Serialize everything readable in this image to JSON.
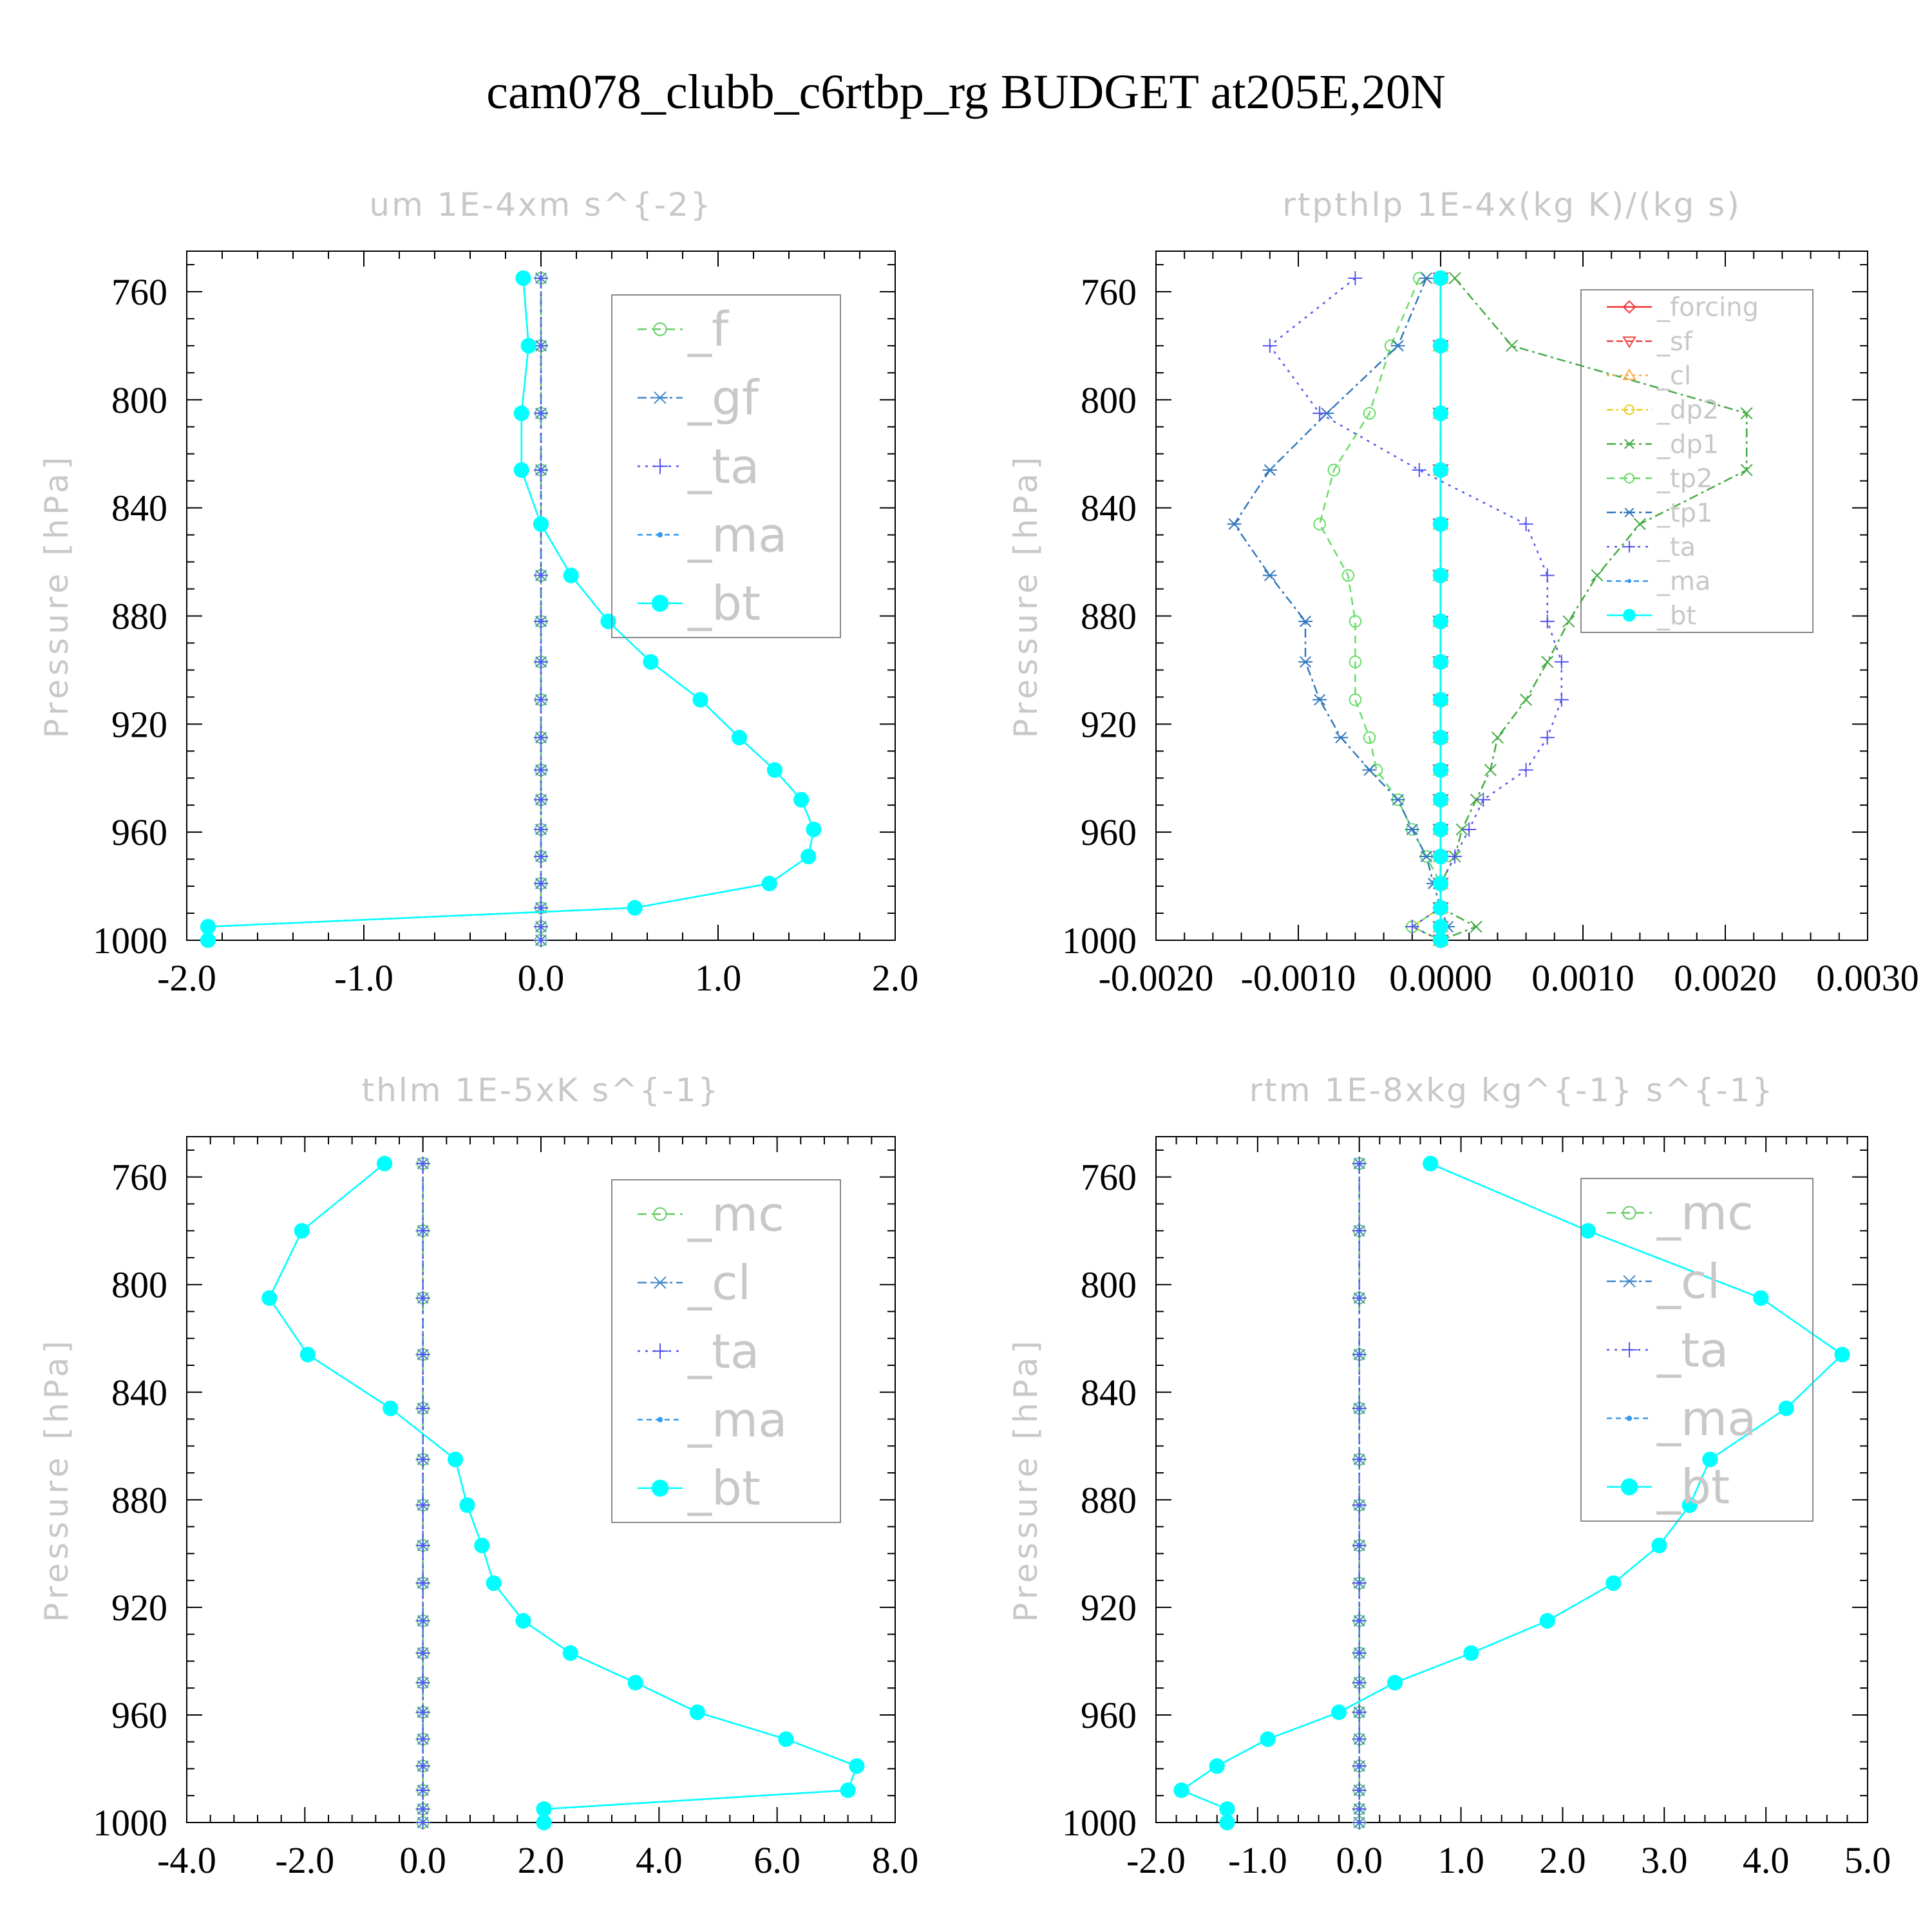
{
  "figure_title": "cam078_clubb_c6rtbp_rg  BUDGET at205E,20N",
  "chart_data": [
    {
      "id": "um",
      "type": "line",
      "title": "um   1E-4xm s^{-2}",
      "ylabel": "Pressure [hPa]",
      "xlim": [
        -2.0,
        2.0
      ],
      "ylim": [
        1000,
        745
      ],
      "xticks": [
        "-2.0",
        "-1.0",
        "0.0",
        "1.0",
        "2.0"
      ],
      "xtick_values": [
        -2.0,
        -1.0,
        0.0,
        1.0,
        2.0
      ],
      "yticks": [
        "760",
        "800",
        "840",
        "880",
        "920",
        "960",
        "1000"
      ],
      "ytick_values": [
        760,
        800,
        840,
        880,
        920,
        960,
        1000
      ],
      "legend_font": 74,
      "levels": [
        755,
        780,
        805,
        826,
        846,
        865,
        882,
        897,
        911,
        925,
        937,
        948,
        959,
        969,
        979,
        988,
        995,
        1000
      ],
      "series": [
        {
          "name": "_f",
          "color": "#66cc66",
          "dash": "14,8",
          "marker": "circle",
          "values": [
            0,
            0,
            0,
            0,
            0,
            0,
            0,
            0,
            0,
            0,
            0,
            0,
            0,
            0,
            0,
            0,
            0,
            0
          ]
        },
        {
          "name": "_gf",
          "color": "#4488cc",
          "dash": "14,6,4,6",
          "marker": "star",
          "values": [
            0,
            0,
            0,
            0,
            0,
            0,
            0,
            0,
            0,
            0,
            0,
            0,
            0,
            0,
            0,
            0,
            0,
            0
          ]
        },
        {
          "name": "_ta",
          "color": "#5555ee",
          "dash": "4,8",
          "marker": "plus",
          "values": [
            0,
            0,
            0,
            0,
            0,
            0,
            0,
            0,
            0,
            0,
            0,
            0,
            0,
            0,
            0,
            0,
            0,
            0
          ]
        },
        {
          "name": "_ma",
          "color": "#3399ee",
          "dash": "8,6",
          "marker": "dot",
          "values": [
            -0.1,
            -0.07,
            -0.11,
            -0.11,
            0.0,
            0.17,
            0.38,
            0.62,
            0.9,
            1.12,
            1.32,
            1.47,
            1.54,
            1.51,
            1.29,
            0.53,
            -1.88,
            -1.88
          ]
        },
        {
          "name": "_bt",
          "color": "#00ffff",
          "dash": "",
          "marker": "bigdot",
          "values": [
            -0.1,
            -0.07,
            -0.11,
            -0.11,
            0.0,
            0.17,
            0.38,
            0.62,
            0.9,
            1.12,
            1.32,
            1.47,
            1.54,
            1.51,
            1.29,
            0.53,
            -1.88,
            -1.88
          ]
        }
      ]
    },
    {
      "id": "rtpthlp",
      "type": "line",
      "title": "rtpthlp   1E-4x(kg K)/(kg s)",
      "ylabel": "Pressure [hPa]",
      "xlim": [
        -0.002,
        0.003
      ],
      "ylim": [
        1000,
        745
      ],
      "xticks": [
        "-0.0020",
        "-0.0010",
        "0.0000",
        "0.0010",
        "0.0020",
        "0.0030"
      ],
      "xtick_values": [
        -0.002,
        -0.001,
        0.0,
        0.001,
        0.002,
        0.003
      ],
      "yticks": [
        "760",
        "800",
        "840",
        "880",
        "920",
        "960",
        "1000"
      ],
      "ytick_values": [
        760,
        800,
        840,
        880,
        920,
        960,
        1000
      ],
      "legend_font": 40,
      "levels": [
        755,
        780,
        805,
        826,
        846,
        865,
        882,
        897,
        911,
        925,
        937,
        948,
        959,
        969,
        979,
        988,
        995,
        1000
      ],
      "series": [
        {
          "name": "_forcing",
          "color": "#ee3333",
          "dash": "",
          "marker": "diamond",
          "values": [
            0,
            0,
            0,
            0,
            0,
            0,
            0,
            0,
            0,
            0,
            0,
            0,
            0,
            0,
            0,
            0,
            0,
            0
          ]
        },
        {
          "name": "_sf",
          "color": "#ee4444",
          "dash": "10,5",
          "marker": "tridown",
          "values": [
            0,
            0,
            0,
            0,
            0,
            0,
            0,
            0,
            0,
            0,
            0,
            0,
            0,
            0,
            0,
            0,
            0,
            0
          ]
        },
        {
          "name": "_cl",
          "color": "#ffaa44",
          "dash": "4,6",
          "marker": "triup",
          "values": [
            0,
            0,
            0,
            0,
            0,
            0,
            0,
            0,
            0,
            0,
            0,
            0,
            0,
            0,
            0,
            0,
            0,
            0
          ]
        },
        {
          "name": "_dp2",
          "color": "#eecc22",
          "dash": "10,5,3,5",
          "marker": "circle",
          "values": [
            0,
            0,
            0,
            0,
            0,
            0,
            0,
            0,
            0,
            0,
            0,
            0,
            0,
            0,
            0,
            0,
            -0.0002,
            0
          ]
        },
        {
          "name": "_dp1",
          "color": "#44aa44",
          "dash": "14,6,4,6",
          "marker": "cross",
          "values": [
            0.0001,
            0.0005,
            0.00215,
            0.00215,
            0.0014,
            0.0011,
            0.0009,
            0.00075,
            0.0006,
            0.0004,
            0.00035,
            0.00025,
            0.00015,
            0.0001,
            0.0,
            0.0,
            0.00025,
            0
          ]
        },
        {
          "name": "_tp2",
          "color": "#66dd66",
          "dash": "12,8",
          "marker": "circle",
          "values": [
            -0.00015,
            -0.00035,
            -0.0005,
            -0.00075,
            -0.00085,
            -0.00065,
            -0.0006,
            -0.0006,
            -0.0006,
            -0.0005,
            -0.00045,
            -0.0003,
            -0.0002,
            -0.0001,
            0.0,
            0.0,
            -0.0002,
            0
          ]
        },
        {
          "name": "_tp1",
          "color": "#3377bb",
          "dash": "14,6,4,6",
          "marker": "star",
          "values": [
            -0.0001,
            -0.0003,
            -0.0008,
            -0.0012,
            -0.00145,
            -0.0012,
            -0.00095,
            -0.00095,
            -0.00085,
            -0.0007,
            -0.0005,
            -0.0003,
            -0.0002,
            -0.0001,
            -5e-05,
            0.0,
            5e-05,
            0
          ]
        },
        {
          "name": "_ta",
          "color": "#5555ee",
          "dash": "4,8",
          "marker": "plus",
          "values": [
            -0.0006,
            -0.0012,
            -0.00085,
            -0.00015,
            0.0006,
            0.00075,
            0.00075,
            0.00085,
            0.00085,
            0.00075,
            0.0006,
            0.0003,
            0.0002,
            0.0001,
            0.0,
            0.0,
            -0.0002,
            0
          ]
        },
        {
          "name": "_ma",
          "color": "#3399ee",
          "dash": "8,6",
          "marker": "dot",
          "values": [
            0,
            0,
            0,
            0,
            0,
            0,
            0,
            0,
            0,
            0,
            0,
            0,
            0,
            0,
            0,
            0,
            0,
            0
          ]
        },
        {
          "name": "_bt",
          "color": "#00ffff",
          "dash": "",
          "marker": "bigdot",
          "values": [
            0,
            0,
            0,
            0,
            0,
            0,
            0,
            0,
            0,
            0,
            0,
            0,
            0,
            0,
            0,
            0,
            0,
            0
          ]
        }
      ]
    },
    {
      "id": "thlm",
      "type": "line",
      "title": "thlm   1E-5xK s^{-1}",
      "ylabel": "Pressure [hPa]",
      "xlim": [
        -4.0,
        8.0
      ],
      "ylim": [
        1000,
        745
      ],
      "xticks": [
        "-4.0",
        "-2.0",
        "0.0",
        "2.0",
        "4.0",
        "6.0",
        "8.0"
      ],
      "xtick_values": [
        -4.0,
        -2.0,
        0.0,
        2.0,
        4.0,
        6.0,
        8.0
      ],
      "yticks": [
        "760",
        "800",
        "840",
        "880",
        "920",
        "960",
        "1000"
      ],
      "ytick_values": [
        760,
        800,
        840,
        880,
        920,
        960,
        1000
      ],
      "legend_font": 74,
      "levels": [
        755,
        780,
        805,
        826,
        846,
        865,
        882,
        897,
        911,
        925,
        937,
        948,
        959,
        969,
        979,
        988,
        995,
        1000
      ],
      "series": [
        {
          "name": "_mc",
          "color": "#66cc66",
          "dash": "14,8",
          "marker": "circle",
          "values": [
            0,
            0,
            0,
            0,
            0,
            0,
            0,
            0,
            0,
            0,
            0,
            0,
            0,
            0,
            0,
            0,
            0,
            0
          ]
        },
        {
          "name": "_cl",
          "color": "#4488cc",
          "dash": "14,6,4,6",
          "marker": "star",
          "values": [
            0,
            0,
            0,
            0,
            0,
            0,
            0,
            0,
            0,
            0,
            0,
            0,
            0,
            0,
            0,
            0,
            0,
            0
          ]
        },
        {
          "name": "_ta",
          "color": "#5555ee",
          "dash": "4,8",
          "marker": "plus",
          "values": [
            0,
            0,
            0,
            0,
            0,
            0,
            0,
            0,
            0,
            0,
            0,
            0,
            0,
            0,
            0,
            0,
            0,
            0
          ]
        },
        {
          "name": "_ma",
          "color": "#3399ee",
          "dash": "8,6",
          "marker": "dot",
          "values": [
            -0.65,
            -2.05,
            -2.6,
            -1.95,
            -0.55,
            0.55,
            0.75,
            1.0,
            1.2,
            1.7,
            2.5,
            3.6,
            4.65,
            6.15,
            7.35,
            7.2,
            2.05,
            2.05
          ]
        },
        {
          "name": "_bt",
          "color": "#00ffff",
          "dash": "",
          "marker": "bigdot",
          "values": [
            -0.65,
            -2.05,
            -2.6,
            -1.95,
            -0.55,
            0.55,
            0.75,
            1.0,
            1.2,
            1.7,
            2.5,
            3.6,
            4.65,
            6.15,
            7.35,
            7.2,
            2.05,
            2.05
          ]
        }
      ]
    },
    {
      "id": "rtm",
      "type": "line",
      "title": "rtm   1E-8xkg kg^{-1} s^{-1}",
      "ylabel": "Pressure [hPa]",
      "xlim": [
        -2.0,
        5.0
      ],
      "ylim": [
        1000,
        745
      ],
      "xticks": [
        "-2.0",
        "-1.0",
        "0.0",
        "1.0",
        "2.0",
        "3.0",
        "4.0",
        "5.0"
      ],
      "xtick_values": [
        -2.0,
        -1.0,
        0.0,
        1.0,
        2.0,
        3.0,
        4.0,
        5.0
      ],
      "yticks": [
        "760",
        "800",
        "840",
        "880",
        "920",
        "960",
        "1000"
      ],
      "ytick_values": [
        760,
        800,
        840,
        880,
        920,
        960,
        1000
      ],
      "legend_font": 74,
      "levels": [
        755,
        780,
        805,
        826,
        846,
        865,
        882,
        897,
        911,
        925,
        937,
        948,
        959,
        969,
        979,
        988,
        995,
        1000
      ],
      "series": [
        {
          "name": "_mc",
          "color": "#66cc66",
          "dash": "14,8",
          "marker": "circle",
          "values": [
            0,
            0,
            0,
            0,
            0,
            0,
            0,
            0,
            0,
            0,
            0,
            0,
            0,
            0,
            0,
            0,
            0,
            0
          ]
        },
        {
          "name": "_cl",
          "color": "#4488cc",
          "dash": "14,6,4,6",
          "marker": "star",
          "values": [
            0,
            0,
            0,
            0,
            0,
            0,
            0,
            0,
            0,
            0,
            0,
            0,
            0,
            0,
            0,
            0,
            0,
            0
          ]
        },
        {
          "name": "_ta",
          "color": "#5555ee",
          "dash": "4,8",
          "marker": "plus",
          "values": [
            0,
            0,
            0,
            0,
            0,
            0,
            0,
            0,
            0,
            0,
            0,
            0,
            0,
            0,
            0,
            0,
            0,
            0
          ]
        },
        {
          "name": "_ma",
          "color": "#3399ee",
          "dash": "8,6",
          "marker": "dot",
          "values": [
            0.7,
            2.25,
            3.95,
            4.75,
            4.2,
            3.45,
            3.25,
            2.95,
            2.5,
            1.85,
            1.1,
            0.35,
            -0.2,
            -0.9,
            -1.4,
            -1.75,
            -1.3,
            -1.3
          ]
        },
        {
          "name": "_bt",
          "color": "#00ffff",
          "dash": "",
          "marker": "bigdot",
          "values": [
            0.7,
            2.25,
            3.95,
            4.75,
            4.2,
            3.45,
            3.25,
            2.95,
            2.5,
            1.85,
            1.1,
            0.35,
            -0.2,
            -0.9,
            -1.4,
            -1.75,
            -1.3,
            -1.3
          ]
        }
      ]
    }
  ]
}
